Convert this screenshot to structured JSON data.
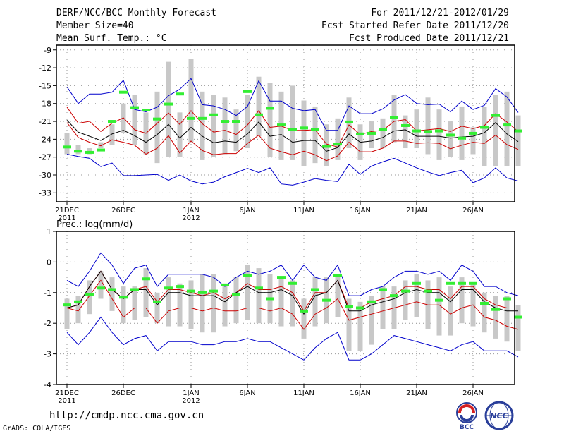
{
  "header": {
    "title": "DERF/NCC/BCC Monthly Forecast",
    "member_size": "Member Size=40",
    "variable": "Mean Surf. Temp.: °C",
    "forecast_period": "For 2011/12/21-2012/01/29",
    "start_date": "Fcst Started Refer Date 2011/12/20",
    "produced_date": "Fcst Produced Date 2011/12/21"
  },
  "footer": {
    "url": "http://cmdp.ncc.cma.gov.cn",
    "grads": "GrADS: COLA/IGES",
    "logo_bcc": "BCC",
    "logo_ncc": "NCC"
  },
  "colors": {
    "max_line": "#0000cc",
    "spread_line": "#cc0000",
    "mean_line": "#000000",
    "box": "#c8c8c8",
    "observed": "#33ee33"
  },
  "chart_data": [
    {
      "type": "line",
      "title": "Mean Surf. Temp.: °C",
      "xlabel": "",
      "ylabel": "",
      "x_tick_labels": [
        "21DEC",
        "26DEC",
        "1JAN",
        "6JAN",
        "11JAN",
        "16JAN",
        "21JAN",
        "26JAN"
      ],
      "x_tick_index": [
        0,
        5,
        11,
        16,
        21,
        26,
        31,
        36
      ],
      "x_year_labels": [
        {
          "index": 0,
          "label": "2011"
        },
        {
          "index": 11,
          "label": "2012"
        }
      ],
      "ylim": [
        -34.5,
        -8.2
      ],
      "yticks": [
        -33,
        -30,
        -27,
        -24,
        -21,
        -18,
        -15,
        -12,
        -9
      ],
      "grid": true,
      "series": [
        {
          "name": "maximum",
          "color": "#0000cc",
          "values": [
            -15.2,
            -18.0,
            -16.4,
            -16.4,
            -16.1,
            -14.1,
            -19.0,
            -19.4,
            -18.6,
            -16.7,
            -15.6,
            -13.8,
            -18.2,
            -18.4,
            -19.0,
            -20.0,
            -18.5,
            -14.2,
            -17.6,
            -17.6,
            -18.8,
            -19.2,
            -19.0,
            -22.5,
            -22.5,
            -18.4,
            -19.7,
            -19.7,
            -18.9,
            -17.4,
            -16.5,
            -18.0,
            -18.2,
            -18.1,
            -19.4,
            -17.6,
            -19.0,
            -18.3,
            -15.5,
            -16.9,
            -19.5
          ]
        },
        {
          "name": "upper",
          "color": "#cc0000",
          "values": [
            -18.6,
            -21.3,
            -21.0,
            -22.7,
            -21.3,
            -20.4,
            -22.4,
            -23.0,
            -21.3,
            -19.6,
            -21.5,
            -19.2,
            -21.4,
            -22.8,
            -22.5,
            -23.2,
            -21.6,
            -19.2,
            -22.0,
            -21.8,
            -22.5,
            -22.5,
            -22.4,
            -24.8,
            -25.3,
            -21.6,
            -23.2,
            -22.7,
            -22.5,
            -21.0,
            -20.7,
            -22.6,
            -22.4,
            -22.2,
            -22.7,
            -21.8,
            -22.2,
            -21.7,
            -19.7,
            -21.1,
            -22.7
          ]
        },
        {
          "name": "mean",
          "color": "#000000",
          "values": [
            -20.8,
            -22.8,
            -23.5,
            -24.2,
            -23.1,
            -22.5,
            -23.4,
            -24.5,
            -23.2,
            -21.5,
            -23.8,
            -22.0,
            -23.5,
            -24.6,
            -24.3,
            -24.5,
            -23.1,
            -21.1,
            -23.5,
            -23.2,
            -24.5,
            -24.2,
            -24.2,
            -26.0,
            -25.4,
            -23.1,
            -24.5,
            -24.3,
            -23.7,
            -22.6,
            -22.4,
            -23.5,
            -23.5,
            -23.5,
            -23.8,
            -23.6,
            -23.5,
            -22.9,
            -21.2,
            -23.1,
            -24.4
          ]
        },
        {
          "name": "lower",
          "color": "#cc0000",
          "values": [
            -21.2,
            -23.7,
            -24.5,
            -25.1,
            -24.1,
            -24.5,
            -25.0,
            -26.5,
            -25.5,
            -23.4,
            -26.3,
            -24.3,
            -25.9,
            -26.6,
            -26.4,
            -26.4,
            -24.7,
            -23.3,
            -25.5,
            -26.1,
            -26.6,
            -26.0,
            -26.6,
            -27.6,
            -26.8,
            -24.5,
            -26.1,
            -26.1,
            -25.5,
            -24.3,
            -24.3,
            -24.7,
            -24.6,
            -24.7,
            -25.6,
            -25.0,
            -24.5,
            -24.7,
            -23.3,
            -24.9,
            -25.7
          ]
        },
        {
          "name": "minimum",
          "color": "#0000cc",
          "values": [
            -26.5,
            -26.9,
            -27.2,
            -28.6,
            -28.0,
            -30.1,
            -30.1,
            -30.0,
            -29.9,
            -30.9,
            -30.0,
            -31.0,
            -31.5,
            -31.2,
            -30.3,
            -29.6,
            -28.9,
            -29.6,
            -28.8,
            -31.5,
            -31.7,
            -31.2,
            -30.6,
            -30.9,
            -31.1,
            -28.2,
            -29.9,
            -28.5,
            -27.8,
            -27.2,
            -28.0,
            -28.8,
            -29.5,
            -30.1,
            -29.6,
            -29.2,
            -31.3,
            -30.5,
            -28.8,
            -30.5,
            -31.0
          ]
        },
        {
          "name": "box_high",
          "color": "#c8c8c8",
          "values": [
            -23.0,
            -25.0,
            -25.5,
            -24.5,
            -21.5,
            -18.0,
            -16.5,
            -19.5,
            -16.0,
            -11.0,
            -19.5,
            -10.5,
            -16.0,
            -16.5,
            -17.0,
            -19.0,
            -16.5,
            -13.5,
            -14.5,
            -16.0,
            -15.0,
            -17.5,
            -18.5,
            -21.5,
            -20.5,
            -17.0,
            -21.5,
            -21.0,
            -20.5,
            -16.5,
            -20.0,
            -19.0,
            -17.0,
            -19.0,
            -21.0,
            -18.5,
            -22.0,
            -18.5,
            -16.5,
            -16.0,
            -20.0
          ]
        },
        {
          "name": "box_low",
          "color": "#c8c8c8",
          "values": [
            -26.5,
            -26.5,
            -26.5,
            -25.5,
            -25.0,
            -23.0,
            -25.0,
            -26.5,
            -28.0,
            -27.0,
            -27.0,
            -24.5,
            -27.5,
            -27.0,
            -26.5,
            -26.0,
            -25.5,
            -23.5,
            -27.0,
            -27.5,
            -27.5,
            -28.5,
            -28.0,
            -28.5,
            -27.5,
            -25.5,
            -27.5,
            -25.5,
            -25.5,
            -24.5,
            -25.5,
            -25.5,
            -26.5,
            -27.5,
            -27.0,
            -27.5,
            -26.5,
            -28.5,
            -28.5,
            -28.5,
            -28.5
          ]
        },
        {
          "name": "observed",
          "color": "#33ee33",
          "values": [
            -25.3,
            -26.0,
            -26.2,
            -25.8,
            -21.0,
            -16.1,
            -18.7,
            -19.1,
            -20.6,
            -18.1,
            -16.4,
            -20.5,
            -20.5,
            -19.9,
            -21.0,
            -21.0,
            -16.0,
            -19.9,
            -18.8,
            -21.6,
            -22.3,
            -22.1,
            -22.3,
            -25.2,
            -24.8,
            -21.1,
            -23.1,
            -23.0,
            -22.4,
            -20.3,
            -21.7,
            -22.6,
            -22.7,
            -22.6,
            -23.3,
            -23.8,
            -23.0,
            -22.0,
            -20.0,
            -21.6,
            -22.6
          ]
        }
      ]
    },
    {
      "type": "line",
      "title": "Prec.: log(mm/d)",
      "xlabel": "",
      "ylabel": "",
      "x_tick_labels": [
        "21DEC",
        "26DEC",
        "1JAN",
        "6JAN",
        "11JAN",
        "16JAN",
        "21JAN",
        "26JAN"
      ],
      "x_tick_index": [
        0,
        5,
        11,
        16,
        21,
        26,
        31,
        36
      ],
      "x_year_labels": [
        {
          "index": 0,
          "label": "2011"
        },
        {
          "index": 11,
          "label": "2012"
        }
      ],
      "ylim": [
        -4,
        1
      ],
      "yticks": [
        -4,
        -3,
        -2,
        -1,
        0,
        1
      ],
      "grid": true,
      "series": [
        {
          "name": "maximum",
          "color": "#0000cc",
          "values": [
            -0.6,
            -0.8,
            -0.3,
            0.3,
            -0.1,
            -0.7,
            -0.2,
            -0.1,
            -0.8,
            -0.4,
            -0.4,
            -0.4,
            -0.4,
            -0.5,
            -0.8,
            -0.5,
            -0.3,
            -0.4,
            -0.3,
            -0.1,
            -0.6,
            -0.1,
            -0.5,
            -0.6,
            -0.1,
            -1.1,
            -1.1,
            -0.9,
            -0.8,
            -0.5,
            -0.3,
            -0.3,
            -0.4,
            -0.3,
            -0.6,
            -0.1,
            -0.3,
            -0.8,
            -0.8,
            -1.0,
            -1.1
          ]
        },
        {
          "name": "upper",
          "color": "#cc0000",
          "values": [
            -1.5,
            -1.4,
            -0.8,
            -0.3,
            -0.9,
            -1.2,
            -0.9,
            -0.8,
            -1.3,
            -0.9,
            -0.9,
            -1.0,
            -1.1,
            -1.0,
            -1.2,
            -1.0,
            -0.7,
            -0.9,
            -0.9,
            -0.8,
            -1.0,
            -1.6,
            -1.0,
            -1.0,
            -0.6,
            -1.5,
            -1.5,
            -1.3,
            -1.2,
            -1.1,
            -0.8,
            -0.8,
            -0.9,
            -0.9,
            -1.2,
            -0.8,
            -0.8,
            -1.2,
            -1.4,
            -1.5,
            -1.5
          ]
        },
        {
          "name": "mean",
          "color": "#000000",
          "values": [
            -1.5,
            -1.4,
            -0.8,
            -0.3,
            -0.9,
            -1.2,
            -0.9,
            -0.9,
            -1.4,
            -1.0,
            -1.0,
            -1.1,
            -1.1,
            -1.1,
            -1.3,
            -1.0,
            -0.8,
            -1.0,
            -1.0,
            -0.9,
            -1.1,
            -1.7,
            -1.1,
            -1.0,
            -0.6,
            -1.6,
            -1.6,
            -1.4,
            -1.3,
            -1.2,
            -1.0,
            -0.9,
            -1.0,
            -1.0,
            -1.3,
            -0.9,
            -0.9,
            -1.3,
            -1.5,
            -1.6,
            -1.6
          ]
        },
        {
          "name": "lower",
          "color": "#cc0000",
          "values": [
            -1.5,
            -1.6,
            -1.1,
            -0.6,
            -1.2,
            -1.8,
            -1.5,
            -1.5,
            -2.0,
            -1.6,
            -1.5,
            -1.5,
            -1.6,
            -1.5,
            -1.6,
            -1.6,
            -1.5,
            -1.5,
            -1.6,
            -1.5,
            -1.7,
            -2.2,
            -1.7,
            -1.5,
            -1.2,
            -1.9,
            -1.8,
            -1.7,
            -1.6,
            -1.5,
            -1.4,
            -1.3,
            -1.4,
            -1.4,
            -1.7,
            -1.5,
            -1.4,
            -1.8,
            -1.9,
            -2.1,
            -2.2
          ]
        },
        {
          "name": "minimum",
          "color": "#0000cc",
          "values": [
            -2.3,
            -2.7,
            -2.3,
            -1.8,
            -2.3,
            -2.7,
            -2.5,
            -2.4,
            -2.9,
            -2.6,
            -2.6,
            -2.6,
            -2.7,
            -2.7,
            -2.6,
            -2.6,
            -2.5,
            -2.6,
            -2.6,
            -2.8,
            -3.0,
            -3.2,
            -2.8,
            -2.5,
            -2.3,
            -3.2,
            -3.2,
            -3.0,
            -2.7,
            -2.4,
            -2.5,
            -2.6,
            -2.7,
            -2.8,
            -2.9,
            -2.7,
            -2.6,
            -2.9,
            -2.9,
            -2.9,
            -3.1
          ]
        },
        {
          "name": "box_high",
          "color": "#c8c8c8",
          "values": [
            -1.2,
            -1.1,
            -0.6,
            -0.3,
            -0.5,
            -0.8,
            -0.8,
            -0.2,
            -1.0,
            -0.5,
            -0.7,
            -0.6,
            -0.4,
            -0.4,
            -0.7,
            -0.5,
            -0.1,
            -0.2,
            -0.4,
            -0.5,
            -0.6,
            -1.2,
            -0.5,
            -0.5,
            -0.4,
            -1.2,
            -1.3,
            -1.1,
            -0.8,
            -0.8,
            -0.6,
            -0.4,
            -0.6,
            -0.5,
            -0.8,
            -0.5,
            -0.7,
            -1.0,
            -1.1,
            -1.1,
            -1.4
          ]
        },
        {
          "name": "box_low",
          "color": "#c8c8c8",
          "values": [
            -2.2,
            -2.0,
            -1.7,
            -1.2,
            -1.6,
            -2.0,
            -1.9,
            -1.8,
            -2.0,
            -2.1,
            -2.1,
            -2.2,
            -2.3,
            -2.3,
            -2.1,
            -2.0,
            -1.9,
            -2.0,
            -2.0,
            -2.1,
            -2.1,
            -2.5,
            -2.1,
            -2.0,
            -1.8,
            -2.9,
            -2.9,
            -2.7,
            -2.2,
            -2.2,
            -1.9,
            -1.8,
            -2.2,
            -2.4,
            -2.4,
            -2.0,
            -2.1,
            -2.3,
            -2.5,
            -2.6,
            -2.9
          ]
        },
        {
          "name": "observed",
          "color": "#33ee33",
          "values": [
            -1.4,
            -1.3,
            -1.05,
            -0.85,
            -0.9,
            -1.15,
            -0.9,
            -0.55,
            -1.3,
            -0.85,
            -0.8,
            -0.95,
            -1.0,
            -0.95,
            -0.75,
            -1.05,
            -0.45,
            -0.85,
            -1.2,
            -0.5,
            -0.7,
            -1.6,
            -0.9,
            -1.25,
            -0.45,
            -1.45,
            -1.5,
            -1.3,
            -0.9,
            -1.1,
            -0.95,
            -0.7,
            -0.95,
            -1.25,
            -0.7,
            -0.7,
            -0.7,
            -1.35,
            -1.55,
            -1.2,
            -1.8
          ]
        }
      ]
    }
  ]
}
